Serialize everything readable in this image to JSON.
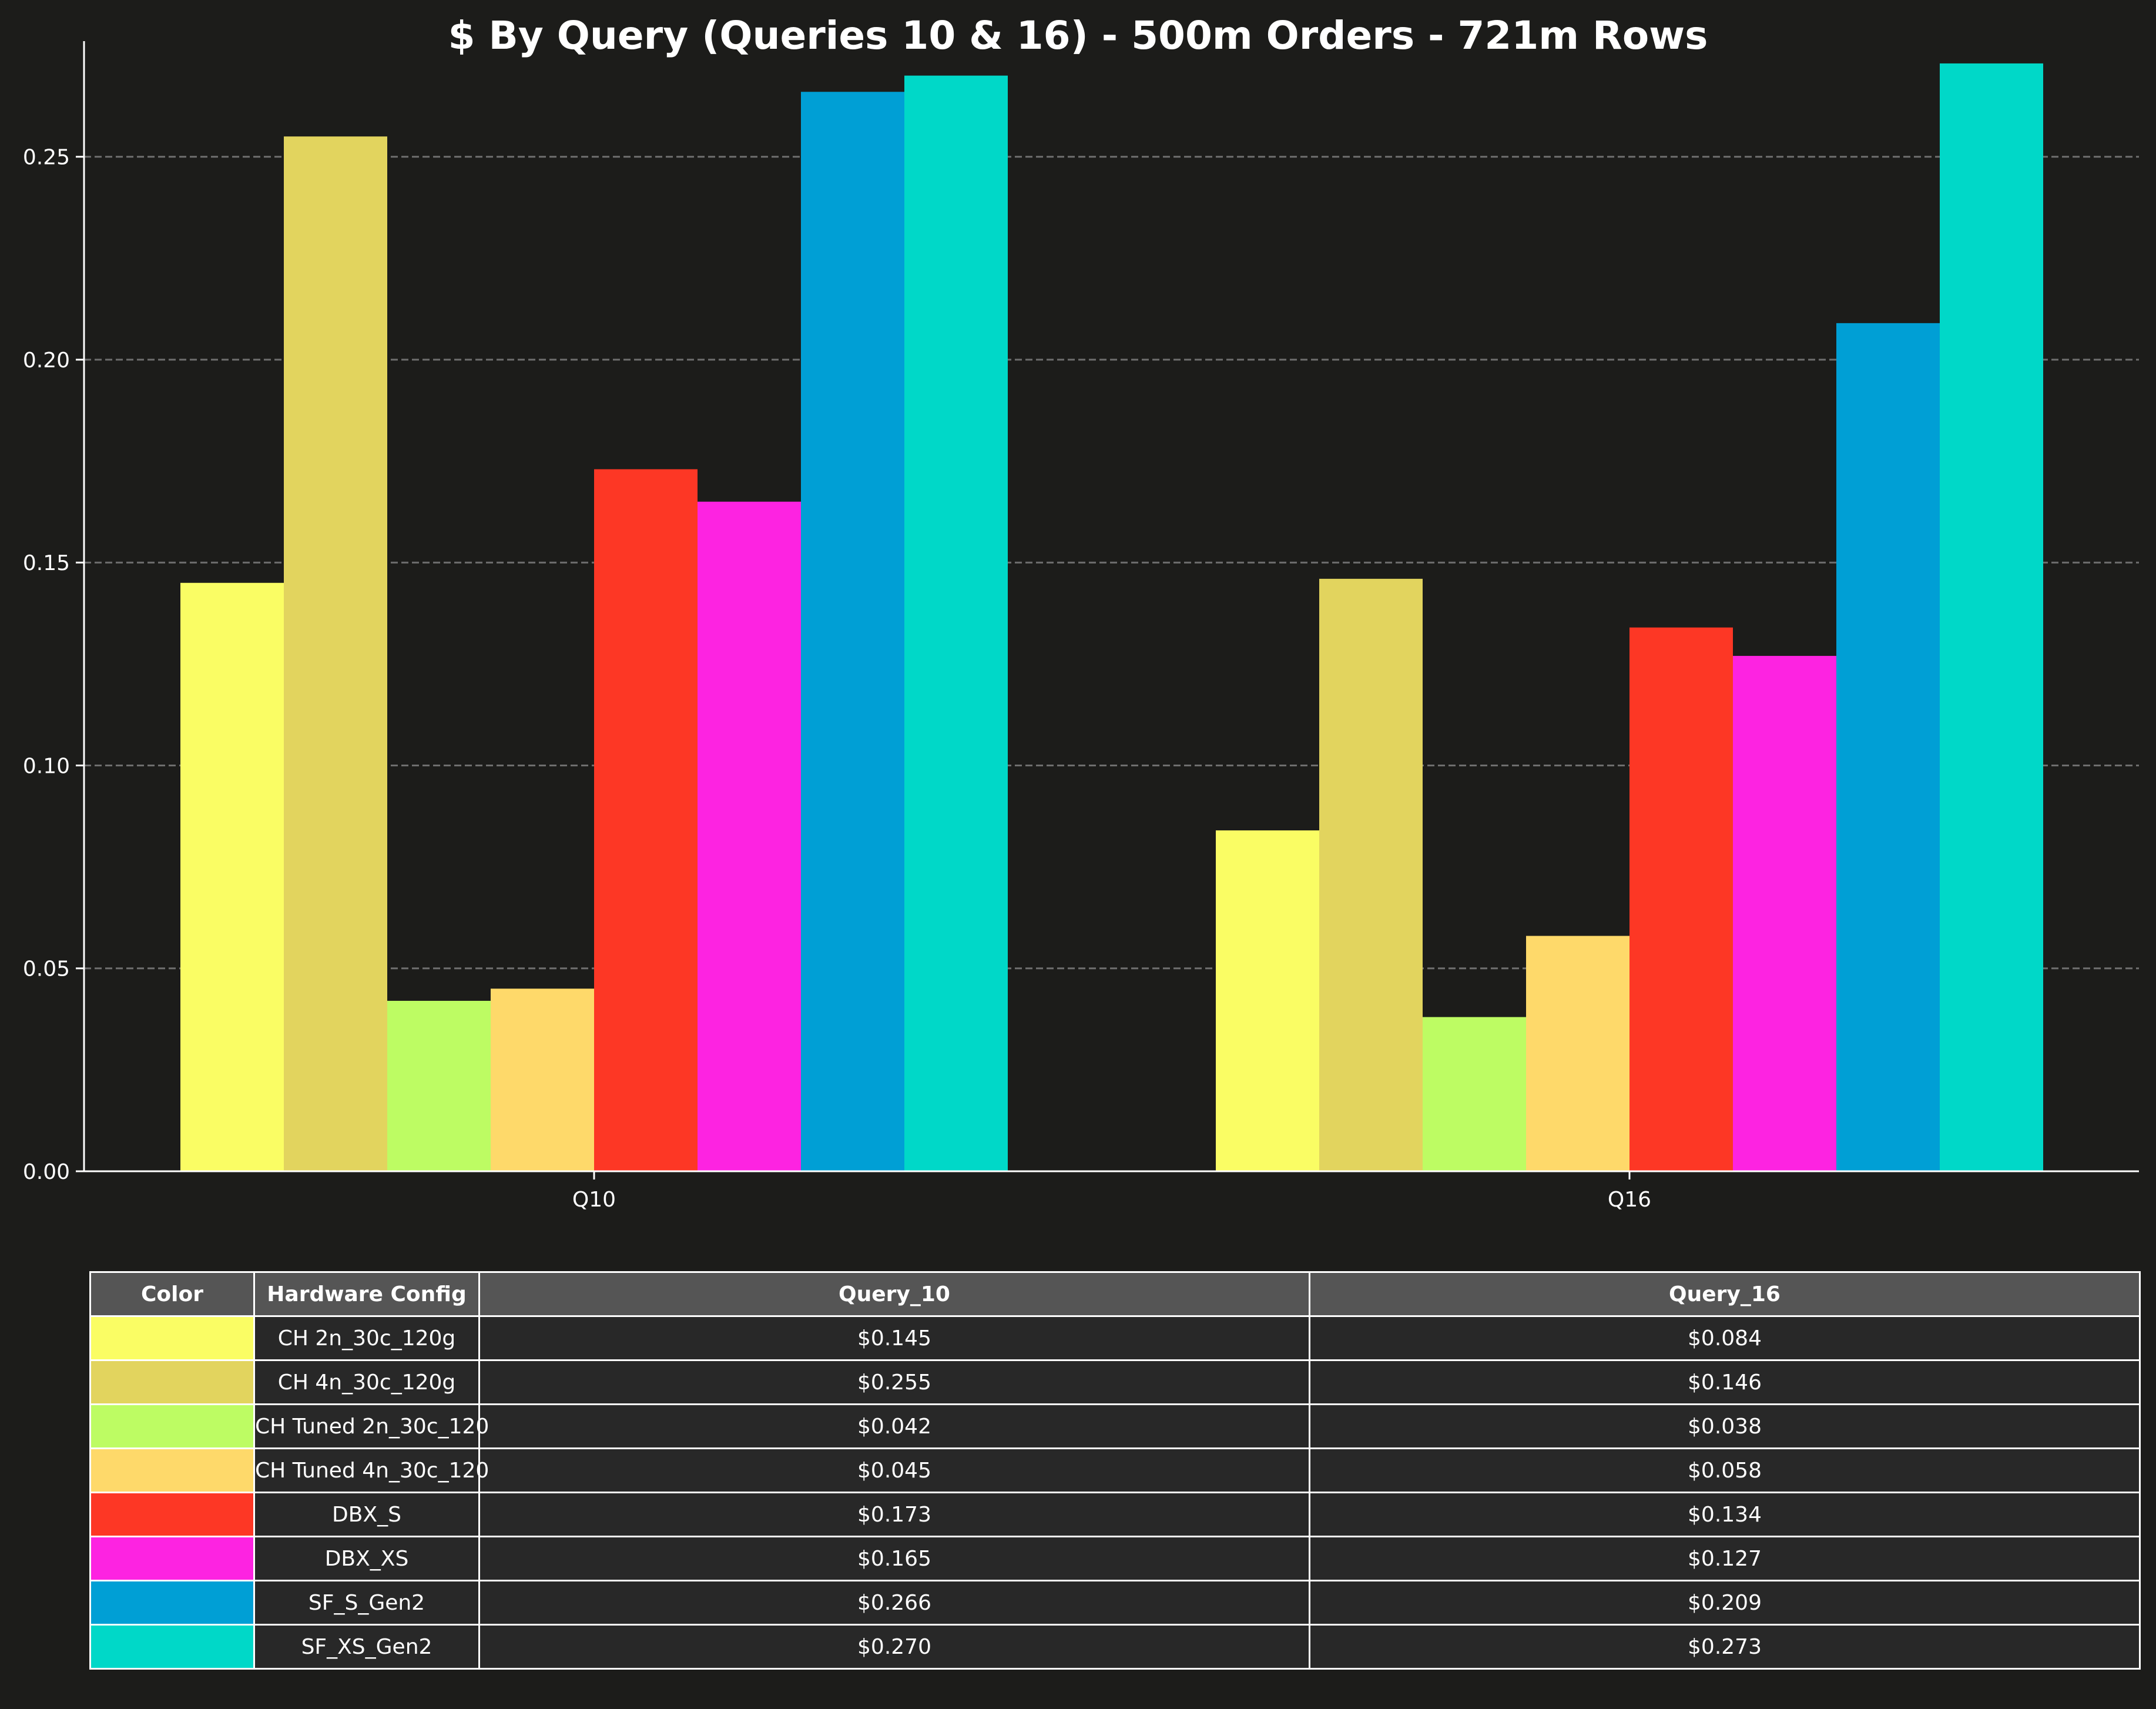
{
  "chart_data": {
    "type": "bar",
    "title": "$ By Query (Queries 10 & 16) - 500m Orders - 721m Rows",
    "xlabel": "",
    "ylabel": "",
    "categories": [
      "Q10",
      "Q16"
    ],
    "ylim": [
      0,
      0.2727
    ],
    "yticks": [
      "0.00",
      "0.05",
      "0.10",
      "0.15",
      "0.20",
      "0.25"
    ],
    "grid": "y-dashed",
    "series": [
      {
        "name": "CH 2n_30c_120g",
        "color": "#fafd64",
        "values": [
          0.145,
          0.084
        ]
      },
      {
        "name": "CH 4n_30c_120g",
        "color": "#e2d45e",
        "values": [
          0.255,
          0.146
        ]
      },
      {
        "name": "CH Tuned 2n_30c_120",
        "color": "#bdfc63",
        "values": [
          0.042,
          0.038
        ]
      },
      {
        "name": "CH Tuned 4n_30c_120",
        "color": "#fed96a",
        "values": [
          0.045,
          0.058
        ]
      },
      {
        "name": "DBX_S",
        "color": "#fd3725",
        "values": [
          0.173,
          0.134
        ]
      },
      {
        "name": "DBX_XS",
        "color": "#fd23e1",
        "values": [
          0.165,
          0.127
        ]
      },
      {
        "name": "SF_S_Gen2",
        "color": "#009fd5",
        "values": [
          0.266,
          0.209
        ]
      },
      {
        "name": "SF_XS_Gen2",
        "color": "#00d8c8",
        "values": [
          0.27,
          0.273
        ]
      }
    ]
  },
  "table": {
    "headers": [
      "Color",
      "Hardware Config",
      "Query_10",
      "Query_16"
    ],
    "rows": [
      {
        "config": "CH 2n_30c_120g",
        "q10": "$0.145",
        "q16": "$0.084"
      },
      {
        "config": "CH 4n_30c_120g",
        "q10": "$0.255",
        "q16": "$0.146"
      },
      {
        "config": "CH Tuned 2n_30c_120",
        "q10": "$0.042",
        "q16": "$0.038"
      },
      {
        "config": "CH Tuned 4n_30c_120",
        "q10": "$0.045",
        "q16": "$0.058"
      },
      {
        "config": "DBX_S",
        "q10": "$0.173",
        "q16": "$0.134"
      },
      {
        "config": "DBX_XS",
        "q10": "$0.165",
        "q16": "$0.127"
      },
      {
        "config": "SF_S_Gen2",
        "q10": "$0.266",
        "q16": "$0.209"
      },
      {
        "config": "SF_XS_Gen2",
        "q10": "$0.270",
        "q16": "$0.273"
      }
    ]
  },
  "colors": {
    "background": "#1c1c1a",
    "grid": "#6e6e6e",
    "axis": "#ffffff",
    "table_header": "#555555",
    "table_cell": "#282828"
  }
}
